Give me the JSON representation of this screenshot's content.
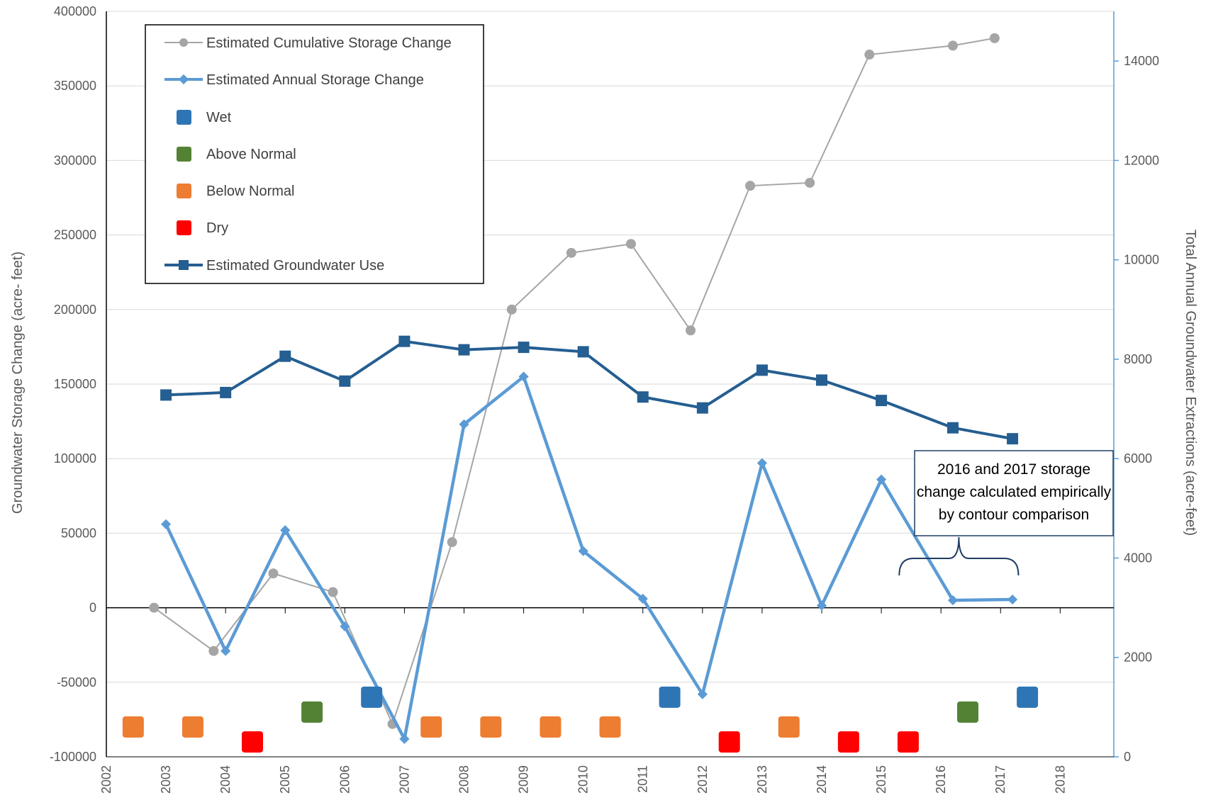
{
  "chart_data": {
    "type": "line",
    "ylabel_left": "Groundwater Storage Change (acre- feet)",
    "ylabel_right": "Total Annual Groundwater Extractions (acre-feet)",
    "ylim_left": [
      -100000,
      400000
    ],
    "ylim_right": [
      0,
      15000
    ],
    "xlim": [
      2002,
      2018.9
    ],
    "left_ticks": [
      "400000",
      "350000",
      "300000",
      "250000",
      "200000",
      "150000",
      "100000",
      "50000",
      "0",
      "-50000",
      "-100000"
    ],
    "right_ticks": [
      "14000",
      "12000",
      "10000",
      "8000",
      "6000",
      "4000",
      "2000",
      "0"
    ],
    "x_ticks": [
      "2002",
      "2003",
      "2004",
      "2005",
      "2006",
      "2007",
      "2008",
      "2009",
      "2010",
      "2011",
      "2012",
      "2013",
      "2014",
      "2015",
      "2016",
      "2017",
      "2018"
    ],
    "grid": "horizontal",
    "legend_position": "top-left",
    "legend": {
      "cumulative": "Estimated Cumulative Storage Change",
      "annual": "Estimated Annual Storage Change",
      "wet": "Wet",
      "above_normal": "Above Normal",
      "below_normal": "Below Normal",
      "dry": "Dry",
      "use": "Estimated Groundwater Use"
    },
    "colors": {
      "cumulative": "#a5a5a5",
      "annual": "#5b9bd5",
      "use": "#255e91",
      "wet": "#2e75b6",
      "above_normal": "#548235",
      "below_normal": "#ed7d31",
      "dry": "#ff0000"
    },
    "series": [
      {
        "name": "Estimated Cumulative Storage Change",
        "axis": "left",
        "x": [
          2002.8,
          2003.8,
          2004.8,
          2005.8,
          2006.8,
          2007.8,
          2008.8,
          2009.8,
          2010.8,
          2011.8,
          2012.8,
          2013.8,
          2014.8,
          2016.2,
          2016.9
        ],
        "y": [
          0,
          -29000,
          23000,
          10500,
          -78000,
          44000,
          200000,
          238000,
          244000,
          186000,
          283000,
          285000,
          371000,
          377000,
          382000
        ]
      },
      {
        "name": "Estimated Annual Storage Change",
        "axis": "left",
        "x": [
          2003,
          2004,
          2005,
          2006,
          2007,
          2008,
          2009,
          2010,
          2011,
          2012,
          2013,
          2014,
          2015,
          2016.2,
          2017.2
        ],
        "y": [
          56000,
          -29000,
          52000,
          -12500,
          -88000,
          123000,
          155000,
          38000,
          6000,
          -58000,
          97000,
          1500,
          86000,
          5000,
          5500
        ]
      },
      {
        "name": "Estimated Groundwater Use",
        "axis": "right",
        "x": [
          2003,
          2004,
          2005,
          2006,
          2007,
          2008,
          2009,
          2010,
          2011,
          2012,
          2013,
          2014,
          2015,
          2016.2,
          2017.2
        ],
        "y": [
          7280,
          7330,
          8060,
          7560,
          8360,
          8190,
          8240,
          8150,
          7240,
          7020,
          7780,
          7580,
          7170,
          6620,
          6400
        ]
      }
    ],
    "year_types": [
      {
        "x": 2002.45,
        "type": "below_normal"
      },
      {
        "x": 2003.45,
        "type": "below_normal"
      },
      {
        "x": 2004.45,
        "type": "dry"
      },
      {
        "x": 2005.45,
        "type": "above_normal"
      },
      {
        "x": 2006.45,
        "type": "wet"
      },
      {
        "x": 2007.45,
        "type": "below_normal"
      },
      {
        "x": 2008.45,
        "type": "below_normal"
      },
      {
        "x": 2009.45,
        "type": "below_normal"
      },
      {
        "x": 2010.45,
        "type": "below_normal"
      },
      {
        "x": 2011.45,
        "type": "wet"
      },
      {
        "x": 2012.45,
        "type": "dry"
      },
      {
        "x": 2013.45,
        "type": "below_normal"
      },
      {
        "x": 2014.45,
        "type": "dry"
      },
      {
        "x": 2015.45,
        "type": "dry"
      },
      {
        "x": 2016.45,
        "type": "above_normal"
      },
      {
        "x": 2017.45,
        "type": "wet"
      }
    ],
    "year_type_levels": {
      "wet": -60000,
      "above_normal": -70000,
      "below_normal": -80000,
      "dry": -90000
    },
    "annotation": {
      "lines": [
        "2016 and 2017 storage",
        "change calculated empirically",
        "by contour comparison"
      ],
      "bracket_x": [
        2015.3,
        2017.3
      ]
    }
  }
}
